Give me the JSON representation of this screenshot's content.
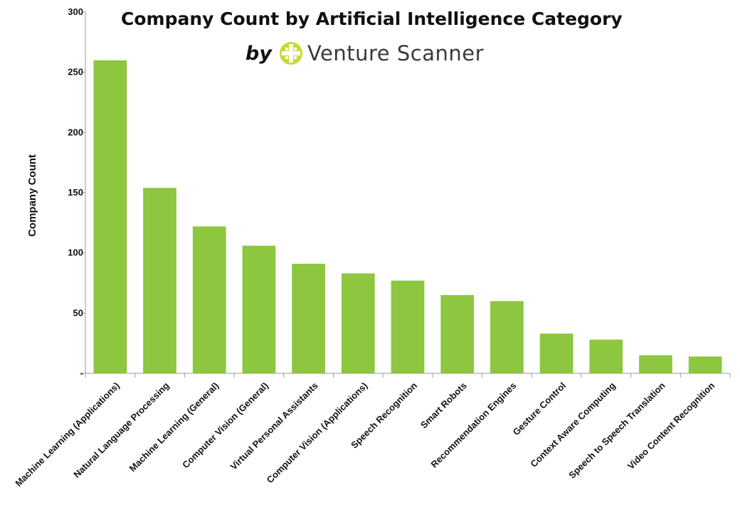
{
  "chart_data": {
    "type": "bar",
    "title": "Company Count by Artificial Intelligence  Category",
    "subtitle_prefix": "by",
    "brand": "Venture Scanner",
    "xlabel": "",
    "ylabel": "Company Count",
    "ylim": [
      0,
      300
    ],
    "yticks": [
      {
        "value": 0,
        "label": "-"
      },
      {
        "value": 50,
        "label": "50"
      },
      {
        "value": 100,
        "label": "100"
      },
      {
        "value": 150,
        "label": "150"
      },
      {
        "value": 200,
        "label": "200"
      },
      {
        "value": 250,
        "label": "250"
      },
      {
        "value": 300,
        "label": "300"
      }
    ],
    "categories": [
      "Machine Learning (Applications)",
      "Natural Language Processing",
      "Machine Learning (General)",
      "Computer Vision (General)",
      "Virtual Personal Assistants",
      "Computer Vision (Applications)",
      "Speech Recognition",
      "Smart Robots",
      "Recommendation Engines",
      "Gesture Control",
      "Context Aware Computing",
      "Speech to Speech Translation",
      "Video Content Recognition"
    ],
    "values": [
      260,
      154,
      122,
      106,
      91,
      83,
      77,
      65,
      60,
      33,
      28,
      15,
      14
    ],
    "bar_color": "#8DC63F",
    "logo_color": "#C8D932",
    "grid": false,
    "legend": "none"
  }
}
